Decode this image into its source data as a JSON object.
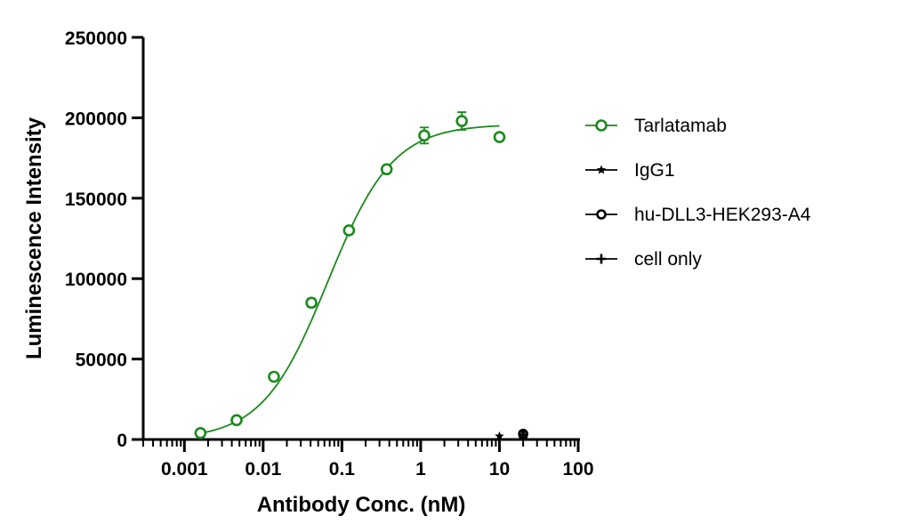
{
  "chart_data": {
    "type": "scatter",
    "xlabel": "Antibody Conc. (nM)",
    "ylabel": "Luminescence Intensity",
    "x_scale": "log",
    "xlim": [
      0.0003,
      100
    ],
    "ylim": [
      0,
      250000
    ],
    "x_ticks": [
      0.001,
      0.01,
      0.1,
      1,
      10,
      100
    ],
    "x_tick_labels": [
      "0.001",
      "0.01",
      "0.1",
      "1",
      "10",
      "100"
    ],
    "y_ticks": [
      0,
      50000,
      100000,
      150000,
      200000,
      250000
    ],
    "y_tick_labels": [
      "0",
      "50000",
      "100000",
      "150000",
      "200000",
      "250000"
    ],
    "legend_position": "right",
    "grid": false,
    "series": [
      {
        "name": "Tarlatamab",
        "color": "#1a8a1a",
        "marker": "open-circle",
        "points": [
          {
            "x": 0.0016,
            "y": 4000,
            "err": 0
          },
          {
            "x": 0.0046,
            "y": 12000,
            "err": 0
          },
          {
            "x": 0.0137,
            "y": 39000,
            "err": 0
          },
          {
            "x": 0.041,
            "y": 85000,
            "err": 2500
          },
          {
            "x": 0.123,
            "y": 130000,
            "err": 0
          },
          {
            "x": 0.37,
            "y": 168000,
            "err": 0
          },
          {
            "x": 1.11,
            "y": 189000,
            "err": 5000
          },
          {
            "x": 3.33,
            "y": 198000,
            "err": 5500
          },
          {
            "x": 10,
            "y": 188000,
            "err": 0
          }
        ],
        "fit": {
          "bottom": 0,
          "top": 196000,
          "ec50": 0.066,
          "hill": 1.05
        }
      },
      {
        "name": "IgG1",
        "color": "#000000",
        "marker": "star",
        "points": [
          {
            "x": 10,
            "y": 2000,
            "err": 0
          }
        ]
      },
      {
        "name": "hu-DLL3-HEK293-A4",
        "color": "#000000",
        "marker": "circle",
        "points": [
          {
            "x": 20,
            "y": 3500,
            "err": 1500
          }
        ]
      },
      {
        "name": "cell only",
        "color": "#000000",
        "marker": "plus",
        "points": [
          {
            "x": 20,
            "y": 3000,
            "err": 1500
          }
        ]
      }
    ]
  }
}
